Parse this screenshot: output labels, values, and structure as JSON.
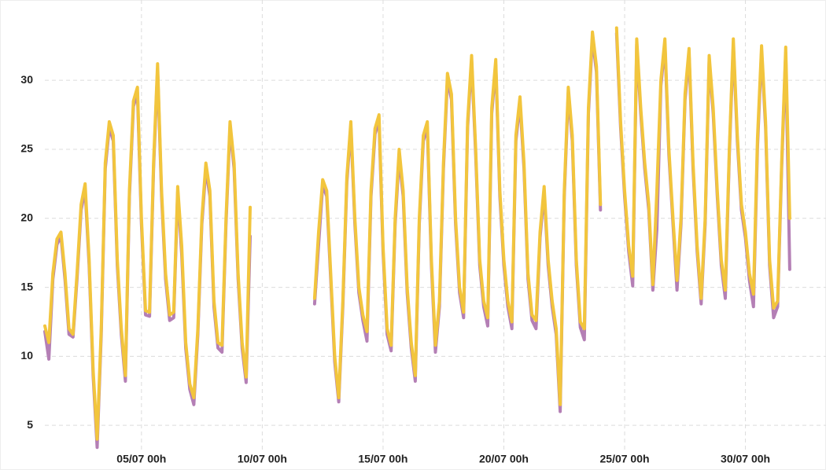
{
  "chart_data": {
    "type": "line",
    "x": [
      "01/07 00h",
      "01/07 04h",
      "01/07 08h",
      "01/07 12h",
      "01/07 16h",
      "01/07 20h",
      "02/07 00h",
      "02/07 04h",
      "02/07 08h",
      "02/07 12h",
      "02/07 16h",
      "02/07 20h",
      "03/07 00h",
      "03/07 04h",
      "03/07 08h",
      "03/07 12h",
      "03/07 16h",
      "03/07 20h",
      "04/07 00h",
      "04/07 04h",
      "04/07 08h",
      "04/07 12h",
      "04/07 16h",
      "04/07 20h",
      "05/07 00h",
      "05/07 04h",
      "05/07 08h",
      "05/07 12h",
      "05/07 16h",
      "05/07 20h",
      "06/07 00h",
      "06/07 04h",
      "06/07 08h",
      "06/07 12h",
      "06/07 16h",
      "06/07 20h",
      "07/07 00h",
      "07/07 04h",
      "07/07 08h",
      "07/07 12h",
      "07/07 16h",
      "07/07 20h",
      "08/07 00h",
      "08/07 04h",
      "08/07 08h",
      "08/07 12h",
      "08/07 16h",
      "08/07 20h",
      "09/07 00h",
      "09/07 04h",
      "09/07 08h",
      "09/07 12h",
      "09/07 16h",
      "09/07 20h",
      "10/07 00h",
      "10/07 04h",
      "10/07 08h",
      "10/07 12h",
      "10/07 16h",
      "10/07 20h",
      "11/07 00h",
      "11/07 04h",
      "11/07 08h",
      "11/07 12h",
      "11/07 16h",
      "11/07 20h",
      "12/07 00h",
      "12/07 04h",
      "12/07 08h",
      "12/07 12h",
      "12/07 16h",
      "12/07 20h",
      "13/07 00h",
      "13/07 04h",
      "13/07 08h",
      "13/07 12h",
      "13/07 16h",
      "13/07 20h",
      "14/07 00h",
      "14/07 04h",
      "14/07 08h",
      "14/07 12h",
      "14/07 16h",
      "14/07 20h",
      "15/07 00h",
      "15/07 04h",
      "15/07 08h",
      "15/07 12h",
      "15/07 16h",
      "15/07 20h",
      "16/07 00h",
      "16/07 04h",
      "16/07 08h",
      "16/07 12h",
      "16/07 16h",
      "16/07 20h",
      "17/07 00h",
      "17/07 04h",
      "17/07 08h",
      "17/07 12h",
      "17/07 16h",
      "17/07 20h",
      "18/07 00h",
      "18/07 04h",
      "18/07 08h",
      "18/07 12h",
      "18/07 16h",
      "18/07 20h",
      "19/07 00h",
      "19/07 04h",
      "19/07 08h",
      "19/07 12h",
      "19/07 16h",
      "19/07 20h",
      "20/07 00h",
      "20/07 04h",
      "20/07 08h",
      "20/07 12h",
      "20/07 16h",
      "20/07 20h",
      "21/07 00h",
      "21/07 04h",
      "21/07 08h",
      "21/07 12h",
      "21/07 16h",
      "21/07 20h",
      "22/07 00h",
      "22/07 04h",
      "22/07 08h",
      "22/07 12h",
      "22/07 16h",
      "22/07 20h",
      "23/07 00h",
      "23/07 04h",
      "23/07 08h",
      "23/07 12h",
      "23/07 16h",
      "23/07 20h",
      "24/07 00h",
      "24/07 04h",
      "24/07 08h",
      "24/07 12h",
      "24/07 16h",
      "24/07 20h",
      "25/07 00h",
      "25/07 04h",
      "25/07 08h",
      "25/07 12h",
      "25/07 16h",
      "25/07 20h",
      "26/07 00h",
      "26/07 04h",
      "26/07 08h",
      "26/07 12h",
      "26/07 16h",
      "26/07 20h",
      "27/07 00h",
      "27/07 04h",
      "27/07 08h",
      "27/07 12h",
      "27/07 16h",
      "27/07 20h",
      "28/07 00h",
      "28/07 04h",
      "28/07 08h",
      "28/07 12h",
      "28/07 16h",
      "28/07 20h",
      "29/07 00h",
      "29/07 04h",
      "29/07 08h",
      "29/07 12h",
      "29/07 16h",
      "29/07 20h",
      "30/07 00h",
      "30/07 04h",
      "30/07 08h",
      "30/07 12h",
      "30/07 16h",
      "30/07 20h",
      "31/07 00h",
      "31/07 04h",
      "31/07 08h",
      "31/07 12h",
      "31/07 16h",
      "31/07 20h"
    ],
    "series": [
      {
        "color": "#b47fb5",
        "values": [
          11.8,
          9.8,
          15.6,
          18.1,
          18.7,
          15.6,
          11.6,
          11.4,
          15.6,
          20.6,
          22.1,
          16.6,
          8.6,
          3.4,
          11.6,
          23.6,
          26.6,
          25.6,
          16.6,
          11.6,
          8.2,
          21.6,
          28.1,
          29.1,
          19.6,
          13.0,
          12.9,
          23.6,
          30.8,
          21.6,
          15.6,
          12.6,
          12.8,
          21.9,
          17.4,
          10.6,
          7.6,
          6.5,
          11.6,
          19.6,
          23.6,
          21.6,
          13.6,
          10.6,
          10.3,
          19.6,
          26.6,
          23.6,
          15.6,
          10.6,
          8.1,
          18.7,
          null,
          null,
          null,
          null,
          null,
          null,
          null,
          null,
          null,
          null,
          null,
          null,
          null,
          null,
          null,
          13.8,
          18.1,
          22.4,
          21.6,
          15.6,
          9.6,
          6.7,
          13.6,
          22.6,
          26.6,
          19.6,
          14.6,
          12.6,
          11.1,
          21.6,
          26.1,
          27.1,
          17.6,
          11.6,
          10.4,
          19.6,
          24.4,
          21.6,
          14.6,
          10.6,
          8.2,
          19.6,
          25.6,
          26.6,
          16.6,
          10.3,
          13.6,
          23.6,
          30.1,
          28.6,
          19.6,
          14.6,
          12.8,
          26.6,
          31.4,
          24.6,
          16.6,
          13.6,
          12.2,
          27.6,
          31.1,
          21.6,
          16.6,
          13.6,
          12.0,
          25.6,
          28.4,
          23.6,
          15.6,
          12.6,
          12.0,
          18.6,
          21.9,
          16.6,
          13.6,
          11.6,
          6.0,
          21.6,
          29.1,
          25.6,
          16.6,
          12.1,
          11.2,
          27.6,
          33.1,
          30.6,
          20.6,
          null,
          null,
          null,
          33.4,
          26.6,
          21.6,
          17.6,
          15.1,
          32.6,
          27.6,
          23.6,
          20.6,
          14.8,
          19.2,
          29.6,
          32.6,
          24.6,
          19.6,
          14.8,
          19.6,
          28.6,
          31.9,
          23.6,
          17.6,
          13.8,
          19.6,
          31.4,
          27.6,
          21.6,
          16.6,
          14.2,
          24.6,
          32.6,
          25.6,
          20.6,
          18.6,
          15.5,
          13.6,
          25.2,
          32.1,
          26.6,
          16.6,
          12.8,
          13.6,
          23.6,
          32.0,
          16.3
        ]
      },
      {
        "color": "#f2c53d",
        "values": [
          12.2,
          11.0,
          16.0,
          18.5,
          19.0,
          16.0,
          12.0,
          11.6,
          16.0,
          21.0,
          22.5,
          17.0,
          9.0,
          4.0,
          12.0,
          24.0,
          27.0,
          26.0,
          17.0,
          12.0,
          8.6,
          22.0,
          28.5,
          29.5,
          20.0,
          13.3,
          13.2,
          24.0,
          31.2,
          22.0,
          16.0,
          13.0,
          13.2,
          22.3,
          18.0,
          11.0,
          8.0,
          7.0,
          12.0,
          20.0,
          24.0,
          22.0,
          14.0,
          11.0,
          10.8,
          20.0,
          27.0,
          24.0,
          16.0,
          11.0,
          8.5,
          20.8,
          null,
          null,
          null,
          null,
          null,
          null,
          null,
          null,
          null,
          null,
          null,
          null,
          null,
          null,
          null,
          14.2,
          19.0,
          22.8,
          22.0,
          16.0,
          10.0,
          7.0,
          14.0,
          23.0,
          27.0,
          20.0,
          15.0,
          13.0,
          11.8,
          22.0,
          26.5,
          27.5,
          18.0,
          12.0,
          10.8,
          20.0,
          25.0,
          22.0,
          15.0,
          11.0,
          8.6,
          20.0,
          26.0,
          27.0,
          17.0,
          10.8,
          14.0,
          24.0,
          30.5,
          29.0,
          20.0,
          15.0,
          13.2,
          27.0,
          31.8,
          25.0,
          17.0,
          14.0,
          12.8,
          28.0,
          31.5,
          22.0,
          17.0,
          14.0,
          12.5,
          26.0,
          28.8,
          24.0,
          16.0,
          13.0,
          12.6,
          19.0,
          22.3,
          17.0,
          14.0,
          12.0,
          6.5,
          22.0,
          29.5,
          26.0,
          17.0,
          12.5,
          12.0,
          28.0,
          33.5,
          31.0,
          21.0,
          null,
          null,
          null,
          33.8,
          27.0,
          22.0,
          18.0,
          15.8,
          33.0,
          28.0,
          24.0,
          21.0,
          15.2,
          22.0,
          30.0,
          33.0,
          25.0,
          20.0,
          15.5,
          20.0,
          29.0,
          32.3,
          24.0,
          18.0,
          14.2,
          20.0,
          31.8,
          28.0,
          22.0,
          17.0,
          14.8,
          25.0,
          33.0,
          26.0,
          21.0,
          19.0,
          16.0,
          14.5,
          25.8,
          32.5,
          27.0,
          17.0,
          13.5,
          14.0,
          24.0,
          32.4,
          20.0
        ]
      }
    ],
    "xlim": [
      "01/07 00h",
      "01/08 00h"
    ],
    "xticks": [
      "05/07 00h",
      "10/07 00h",
      "15/07 00h",
      "20/07 00h",
      "25/07 00h",
      "30/07 00h"
    ],
    "ylim": [
      3.5,
      35.5
    ],
    "yticks": [
      5,
      10,
      15,
      20,
      25,
      30
    ],
    "grid": true
  }
}
